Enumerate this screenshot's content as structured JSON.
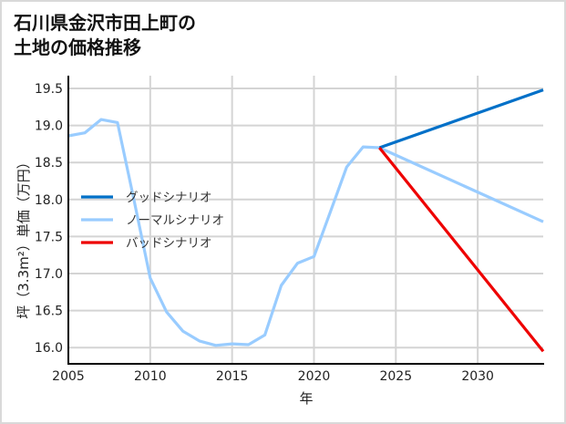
{
  "title_lines": [
    "石川県金沢市田上町の",
    "土地の価格推移"
  ],
  "chart_data": {
    "type": "line",
    "title": "石川県金沢市田上町の土地の価格推移",
    "xlabel": "年",
    "ylabel": "坪（3.3m²）単価（万円）",
    "xlim": [
      2005,
      2034
    ],
    "ylim": [
      15.78,
      19.68
    ],
    "xticks": [
      2005,
      2010,
      2015,
      2020,
      2025,
      2030
    ],
    "yticks": [
      16.0,
      16.5,
      17.0,
      17.5,
      18.0,
      18.5,
      19.0,
      19.5
    ],
    "grid": true,
    "legend_position": "center-left",
    "series": [
      {
        "name": "グッドシナリオ",
        "color": "#0070c8",
        "x": [
          2024,
          2034
        ],
        "y": [
          18.7,
          19.48
        ]
      },
      {
        "name": "ノーマルシナリオ",
        "color": "#99ccff",
        "x": [
          2005,
          2006,
          2007,
          2008,
          2009,
          2010,
          2011,
          2012,
          2013,
          2014,
          2015,
          2016,
          2017,
          2018,
          2019,
          2020,
          2021,
          2022,
          2023,
          2024,
          2034
        ],
        "y": [
          18.86,
          18.9,
          19.08,
          19.04,
          18.0,
          16.94,
          16.48,
          16.22,
          16.09,
          16.03,
          16.05,
          16.04,
          16.17,
          16.84,
          17.14,
          17.23,
          17.83,
          18.44,
          18.71,
          18.7,
          17.7
        ]
      },
      {
        "name": "バッドシナリオ",
        "color": "#ee0000",
        "x": [
          2024,
          2034
        ],
        "y": [
          18.7,
          15.95
        ]
      }
    ]
  },
  "tick_labels": {
    "x": [
      "2005",
      "2010",
      "2015",
      "2020",
      "2025",
      "2030"
    ],
    "y": [
      "16.0",
      "16.5",
      "17.0",
      "17.5",
      "18.0",
      "18.5",
      "19.0",
      "19.5"
    ]
  }
}
